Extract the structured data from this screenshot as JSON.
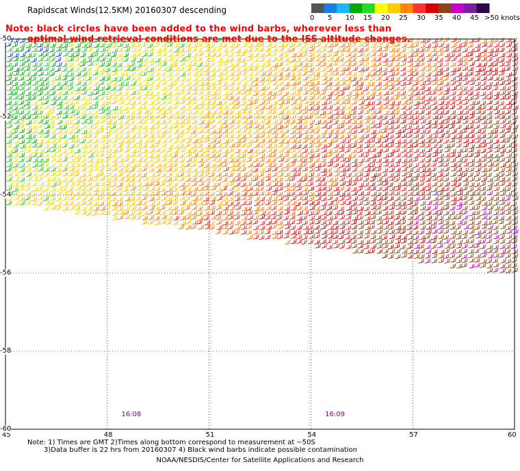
{
  "title": "Rapidscat Winds(12.5KM) 20160307 descending",
  "note": {
    "line1": "Note: black circles have been added to the wind barbs, wherever less than",
    "line2": "optimal wind retrieval conditions are met due to the ISS altitude changes."
  },
  "legend": {
    "ticks": [
      "0",
      "5",
      "10",
      "15",
      "20",
      "25",
      "30",
      "35",
      "40",
      "45"
    ],
    "last": ">50 knots",
    "colors": [
      "#555555",
      "#1a7fe6",
      "#1ab8ff",
      "#00aa00",
      "#22dd22",
      "#ffff00",
      "#ffcc00",
      "#ff8800",
      "#ff3333",
      "#dd0000",
      "#8b4513",
      "#cc00cc",
      "#7b1fa2",
      "#2a0a4a"
    ]
  },
  "axes": {
    "x_ticks": [
      "45",
      "48",
      "51",
      "54",
      "57",
      "60"
    ],
    "y_ticks": [
      "-50",
      "-52",
      "-54",
      "-56",
      "-58",
      "-60"
    ],
    "lon_range": [
      45,
      60
    ],
    "lat_range": [
      -50,
      -60
    ]
  },
  "time_labels": [
    {
      "text": "16:08",
      "lon": 48.7
    },
    {
      "text": "16:09",
      "lon": 54.7
    }
  ],
  "footer": {
    "line1": "Note: 1) Times are GMT 2)Times along bottom correspond to measurement at ~50S",
    "line2": "3)Data buffer is 22 hrs from 20160307 4) Black wind barbs indicate possible contamination",
    "line3": "NOAA/NESDIS/Center for Satellite Applications and Research"
  }
}
